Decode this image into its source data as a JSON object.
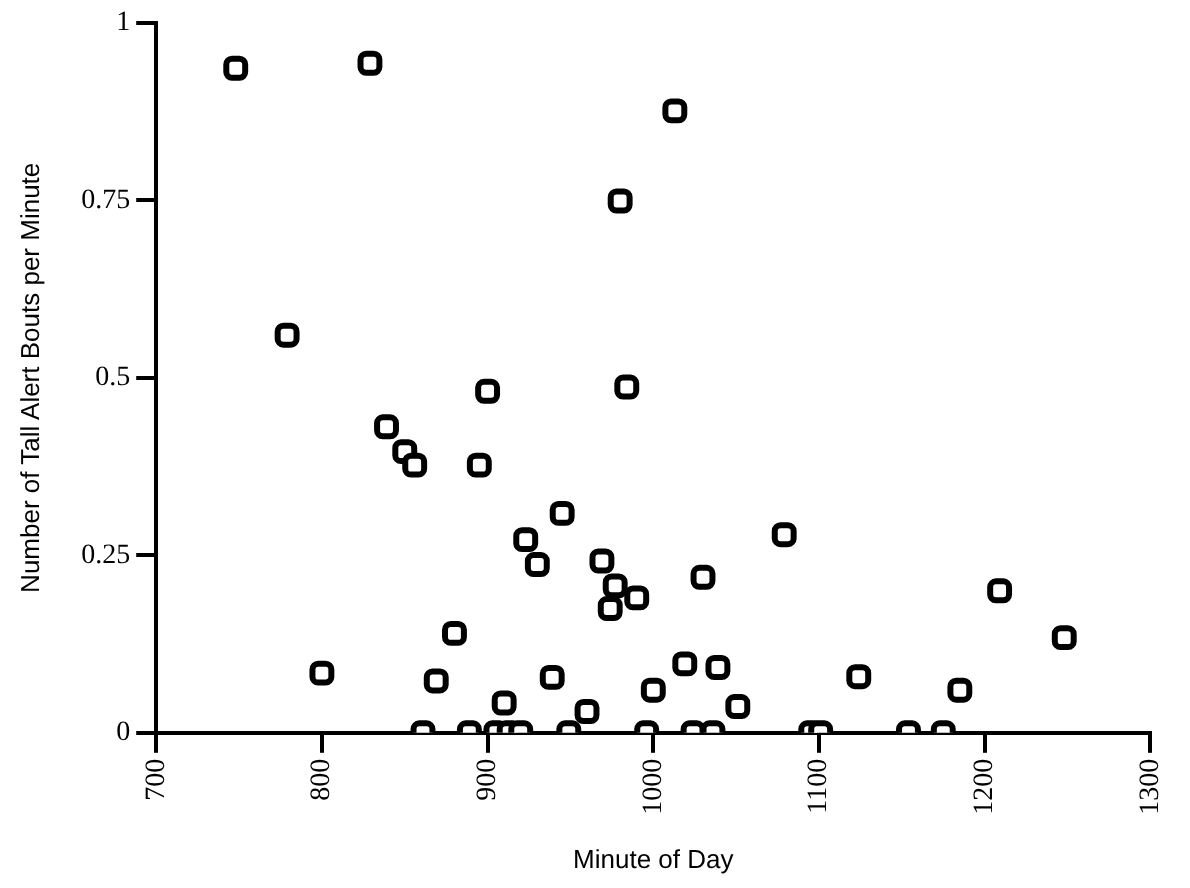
{
  "chart_data": {
    "type": "scatter",
    "xlabel": "Minute of Day",
    "ylabel": "Number of Tall Alert Bouts per Minute",
    "x": [
      748,
      829,
      779,
      800,
      1013,
      980,
      984,
      900,
      839,
      850,
      856,
      895,
      945,
      923,
      930,
      969,
      977,
      974,
      990,
      1030,
      1079,
      1209,
      1248,
      880,
      869,
      939,
      910,
      960,
      1000,
      1019,
      1039,
      1051,
      1124,
      1185,
      861,
      889,
      905,
      913,
      920,
      949,
      996,
      1024,
      1036,
      1095,
      1101,
      1154,
      1175
    ],
    "values": [
      0.936,
      0.943,
      0.56,
      0.084,
      0.876,
      0.749,
      0.487,
      0.481,
      0.431,
      0.396,
      0.377,
      0.377,
      0.309,
      0.272,
      0.237,
      0.242,
      0.207,
      0.175,
      0.19,
      0.219,
      0.279,
      0.2,
      0.134,
      0.14,
      0.073,
      0.078,
      0.042,
      0.03,
      0.06,
      0.097,
      0.092,
      0.037,
      0.079,
      0.06,
      0,
      0,
      0,
      0,
      0,
      0,
      0,
      0,
      0,
      0,
      0,
      0,
      0
    ],
    "color": "#000000",
    "marker": "square",
    "xlim": [
      700,
      1300
    ],
    "xticks": [
      700,
      800,
      900,
      1000,
      1100,
      1200,
      1300
    ],
    "ylim": [
      0,
      1
    ],
    "yticks": [
      0,
      0.25,
      0.5,
      0.75,
      1
    ],
    "grid": false,
    "legend": false
  }
}
